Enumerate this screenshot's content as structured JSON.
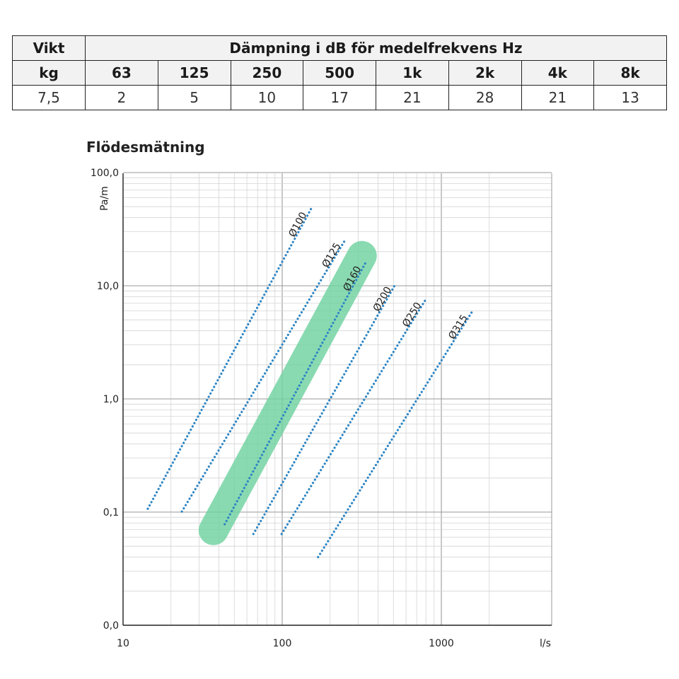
{
  "table": {
    "header1": {
      "col0": "Vikt",
      "span": "Dämpning i dB för medelfrekvens Hz"
    },
    "header2": [
      "kg",
      "63",
      "125",
      "250",
      "500",
      "1k",
      "2k",
      "4k",
      "8k"
    ],
    "values": [
      "7,5",
      "2",
      "5",
      "10",
      "17",
      "21",
      "28",
      "21",
      "13"
    ]
  },
  "chart_data": {
    "type": "line",
    "title": "Flödesmätning",
    "xlabel": "l/s",
    "ylabel": "Pa/m",
    "xscale": "log",
    "yscale": "log",
    "xlim": [
      10,
      2700
    ],
    "ylim": [
      0.01,
      100
    ],
    "x_tick_labels": [
      {
        "value": 10,
        "label": "10"
      },
      {
        "value": 100,
        "label": "100"
      },
      {
        "value": 1000,
        "label": "1000"
      }
    ],
    "y_tick_labels": [
      {
        "value": 100,
        "label": "100,0"
      },
      {
        "value": 10,
        "label": "10,0"
      },
      {
        "value": 1,
        "label": "1,0"
      },
      {
        "value": 0.1,
        "label": "0,1"
      },
      {
        "value": 0.01,
        "label": "0,0"
      }
    ],
    "grid": true,
    "series_color": "#2f86c4",
    "highlight_color": "#6fd2a0",
    "series": [
      {
        "name": "Ø100",
        "points": [
          [
            14.3,
            0.107
          ],
          [
            152,
            48
          ]
        ]
      },
      {
        "name": "Ø125",
        "points": [
          [
            23.4,
            0.101
          ],
          [
            249,
            25.5
          ]
        ]
      },
      {
        "name": "Ø160",
        "points": [
          [
            43.5,
            0.078
          ],
          [
            334,
            16
          ]
        ]
      },
      {
        "name": "Ø200",
        "points": [
          [
            65.9,
            0.064
          ],
          [
            518,
            10.5
          ]
        ]
      },
      {
        "name": "Ø250",
        "points": [
          [
            99.1,
            0.064
          ],
          [
            799,
            7.6
          ]
        ]
      },
      {
        "name": "Ø315",
        "points": [
          [
            168,
            0.04
          ],
          [
            1560,
            5.9
          ]
        ]
      }
    ],
    "highlight": {
      "label": "Ø160",
      "points": [
        [
          37,
          0.069
        ],
        [
          317,
          18.4
        ]
      ]
    }
  }
}
